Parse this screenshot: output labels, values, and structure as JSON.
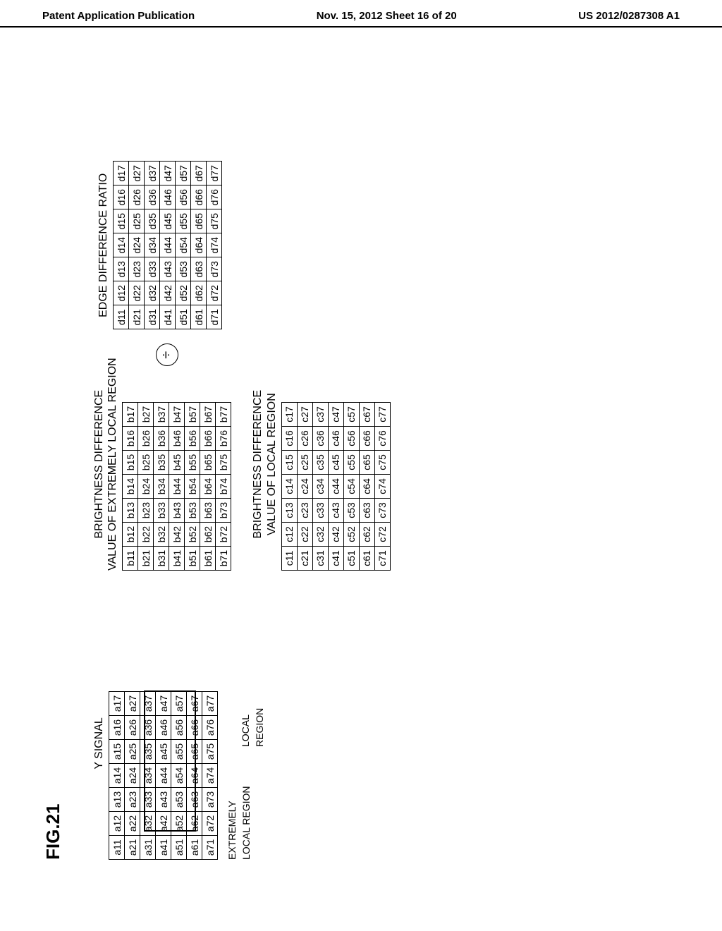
{
  "header": {
    "left": "Patent Application Publication",
    "center": "Nov. 15, 2012  Sheet 16 of 20",
    "right": "US 2012/0287308 A1"
  },
  "fig_label": "FIG.21",
  "titles": {
    "y_signal": "Y SIGNAL",
    "extremely_local": "EXTREMELY\nLOCAL REGION",
    "local_region": "LOCAL\nREGION",
    "b_title": "BRIGHTNESS DIFFERENCE\nVALUE OF EXTREMELY LOCAL REGION",
    "c_title": "BRIGHTNESS DIFFERENCE\nVALUE OF LOCAL REGION",
    "d_title": "EDGE DIFFERENCE RATIO",
    "div": "÷"
  },
  "tableA": [
    [
      "a11",
      "a12",
      "a13",
      "a14",
      "a15",
      "a16",
      "a17"
    ],
    [
      "a21",
      "a22",
      "a23",
      "a24",
      "a25",
      "a26",
      "a27"
    ],
    [
      "a31",
      "a32",
      "a33",
      "a34",
      "a35",
      "a36",
      "a37"
    ],
    [
      "a41",
      "a42",
      "a43",
      "a44",
      "a45",
      "a46",
      "a47"
    ],
    [
      "a51",
      "a52",
      "a53",
      "a54",
      "a55",
      "a56",
      "a57"
    ],
    [
      "a61",
      "a62",
      "a63",
      "a64",
      "a65",
      "a66",
      "a67"
    ],
    [
      "a71",
      "a72",
      "a73",
      "a74",
      "a75",
      "a76",
      "a77"
    ]
  ],
  "tableB": [
    [
      "b11",
      "b12",
      "b13",
      "b14",
      "b15",
      "b16",
      "b17"
    ],
    [
      "b21",
      "b22",
      "b23",
      "b24",
      "b25",
      "b26",
      "b27"
    ],
    [
      "b31",
      "b32",
      "b33",
      "b34",
      "b35",
      "b36",
      "b37"
    ],
    [
      "b41",
      "b42",
      "b43",
      "b44",
      "b45",
      "b46",
      "b47"
    ],
    [
      "b51",
      "b52",
      "b53",
      "b54",
      "b55",
      "b56",
      "b57"
    ],
    [
      "b61",
      "b62",
      "b63",
      "b64",
      "b65",
      "b66",
      "b67"
    ],
    [
      "b71",
      "b72",
      "b73",
      "b74",
      "b75",
      "b76",
      "b77"
    ]
  ],
  "tableC": [
    [
      "c11",
      "c12",
      "c13",
      "c14",
      "c15",
      "c16",
      "c17"
    ],
    [
      "c21",
      "c22",
      "c23",
      "c24",
      "c25",
      "c26",
      "c27"
    ],
    [
      "c31",
      "c32",
      "c33",
      "c34",
      "c35",
      "c36",
      "c37"
    ],
    [
      "c41",
      "c42",
      "c43",
      "c44",
      "c45",
      "c46",
      "c47"
    ],
    [
      "c51",
      "c52",
      "c53",
      "c54",
      "c55",
      "c56",
      "c57"
    ],
    [
      "c61",
      "c62",
      "c63",
      "c64",
      "c65",
      "c66",
      "c67"
    ],
    [
      "c71",
      "c72",
      "c73",
      "c74",
      "c75",
      "c76",
      "c77"
    ]
  ],
  "tableD": [
    [
      "d11",
      "d12",
      "d13",
      "d14",
      "d15",
      "d16",
      "d17"
    ],
    [
      "d21",
      "d22",
      "d23",
      "d24",
      "d25",
      "d26",
      "d27"
    ],
    [
      "d31",
      "d32",
      "d33",
      "d34",
      "d35",
      "d36",
      "d37"
    ],
    [
      "d41",
      "d42",
      "d43",
      "d44",
      "d45",
      "d46",
      "d47"
    ],
    [
      "d51",
      "d52",
      "d53",
      "d54",
      "d55",
      "d56",
      "d57"
    ],
    [
      "d61",
      "d62",
      "d63",
      "d64",
      "d65",
      "d66",
      "d67"
    ],
    [
      "d71",
      "d72",
      "d73",
      "d74",
      "d75",
      "d76",
      "d77"
    ]
  ],
  "style": {
    "cell_border": "#000000",
    "bg": "#ffffff",
    "rows": 7,
    "cols": 7,
    "cell_font_size": 14,
    "title_font_size": 16,
    "extremely_local_box": {
      "row_start": 2,
      "row_end": 4,
      "col_start": 1,
      "col_end": 5
    },
    "local_region_box": {
      "row_start": 0,
      "row_end": 6,
      "col_start": 0,
      "col_end": 6
    }
  }
}
